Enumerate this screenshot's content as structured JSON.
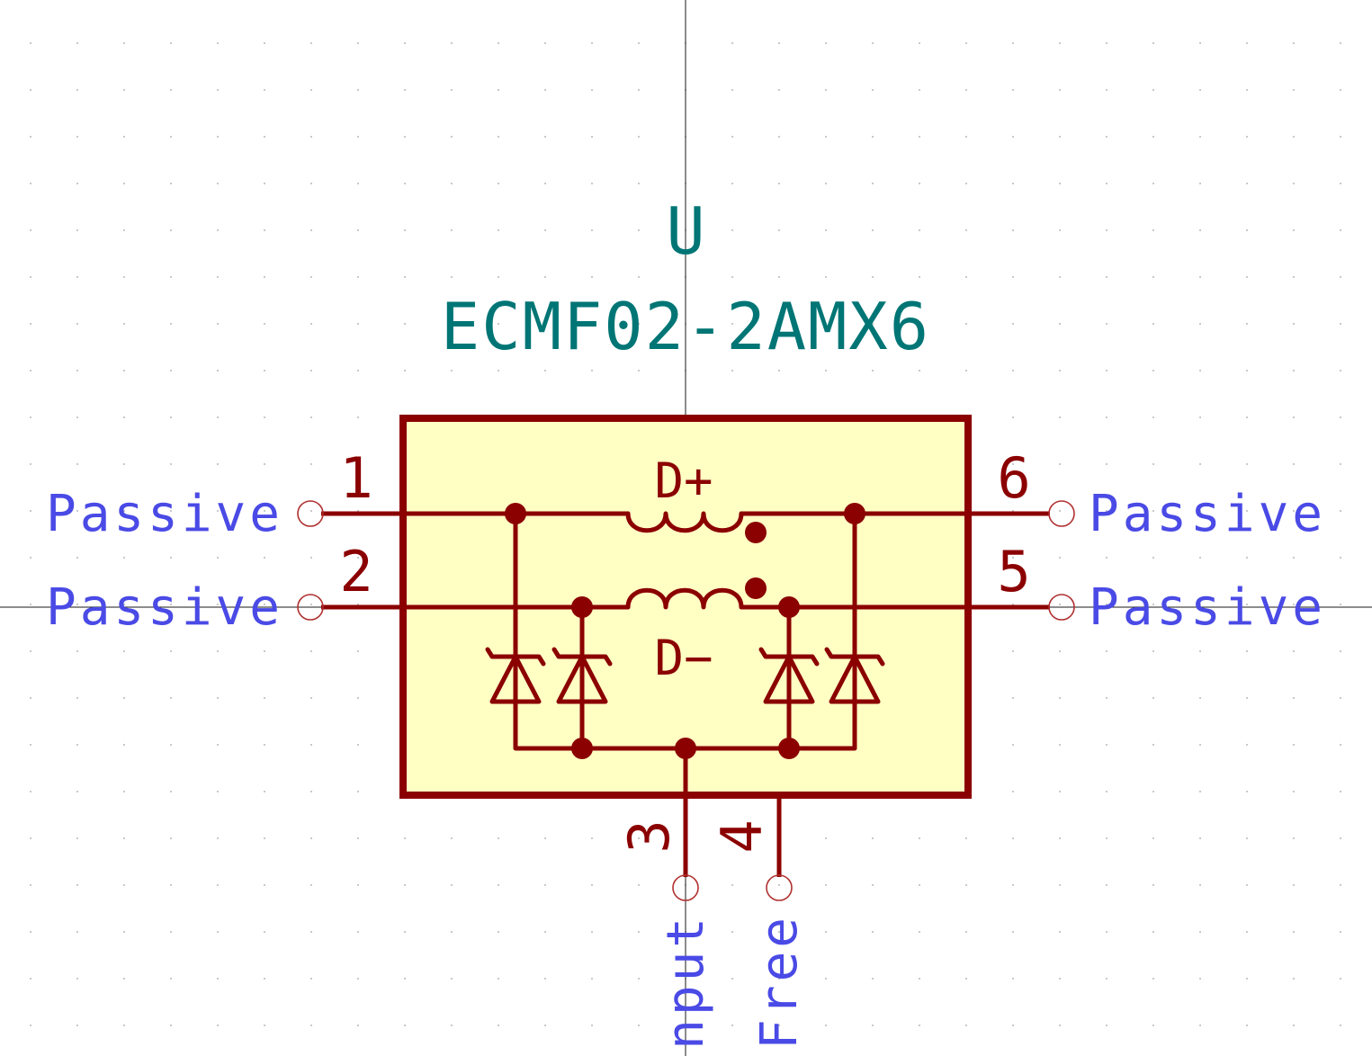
{
  "component": {
    "reference": "U",
    "value": "ECMF02-2AMX6"
  },
  "internal_labels": {
    "top": "D+",
    "bottom": "D−"
  },
  "pins": {
    "p1": {
      "number": "1",
      "type": "Passive"
    },
    "p2": {
      "number": "2",
      "type": "Passive"
    },
    "p3": {
      "number": "3",
      "type": "input"
    },
    "p4": {
      "number": "4",
      "type": "Free"
    },
    "p5": {
      "number": "5",
      "type": "Passive"
    },
    "p6": {
      "number": "6",
      "type": "Passive"
    }
  },
  "colors": {
    "body_fill": "#ffffc4",
    "outline": "#8b0000",
    "field_text": "#007575",
    "pin_type_text": "#4a4ae6"
  }
}
